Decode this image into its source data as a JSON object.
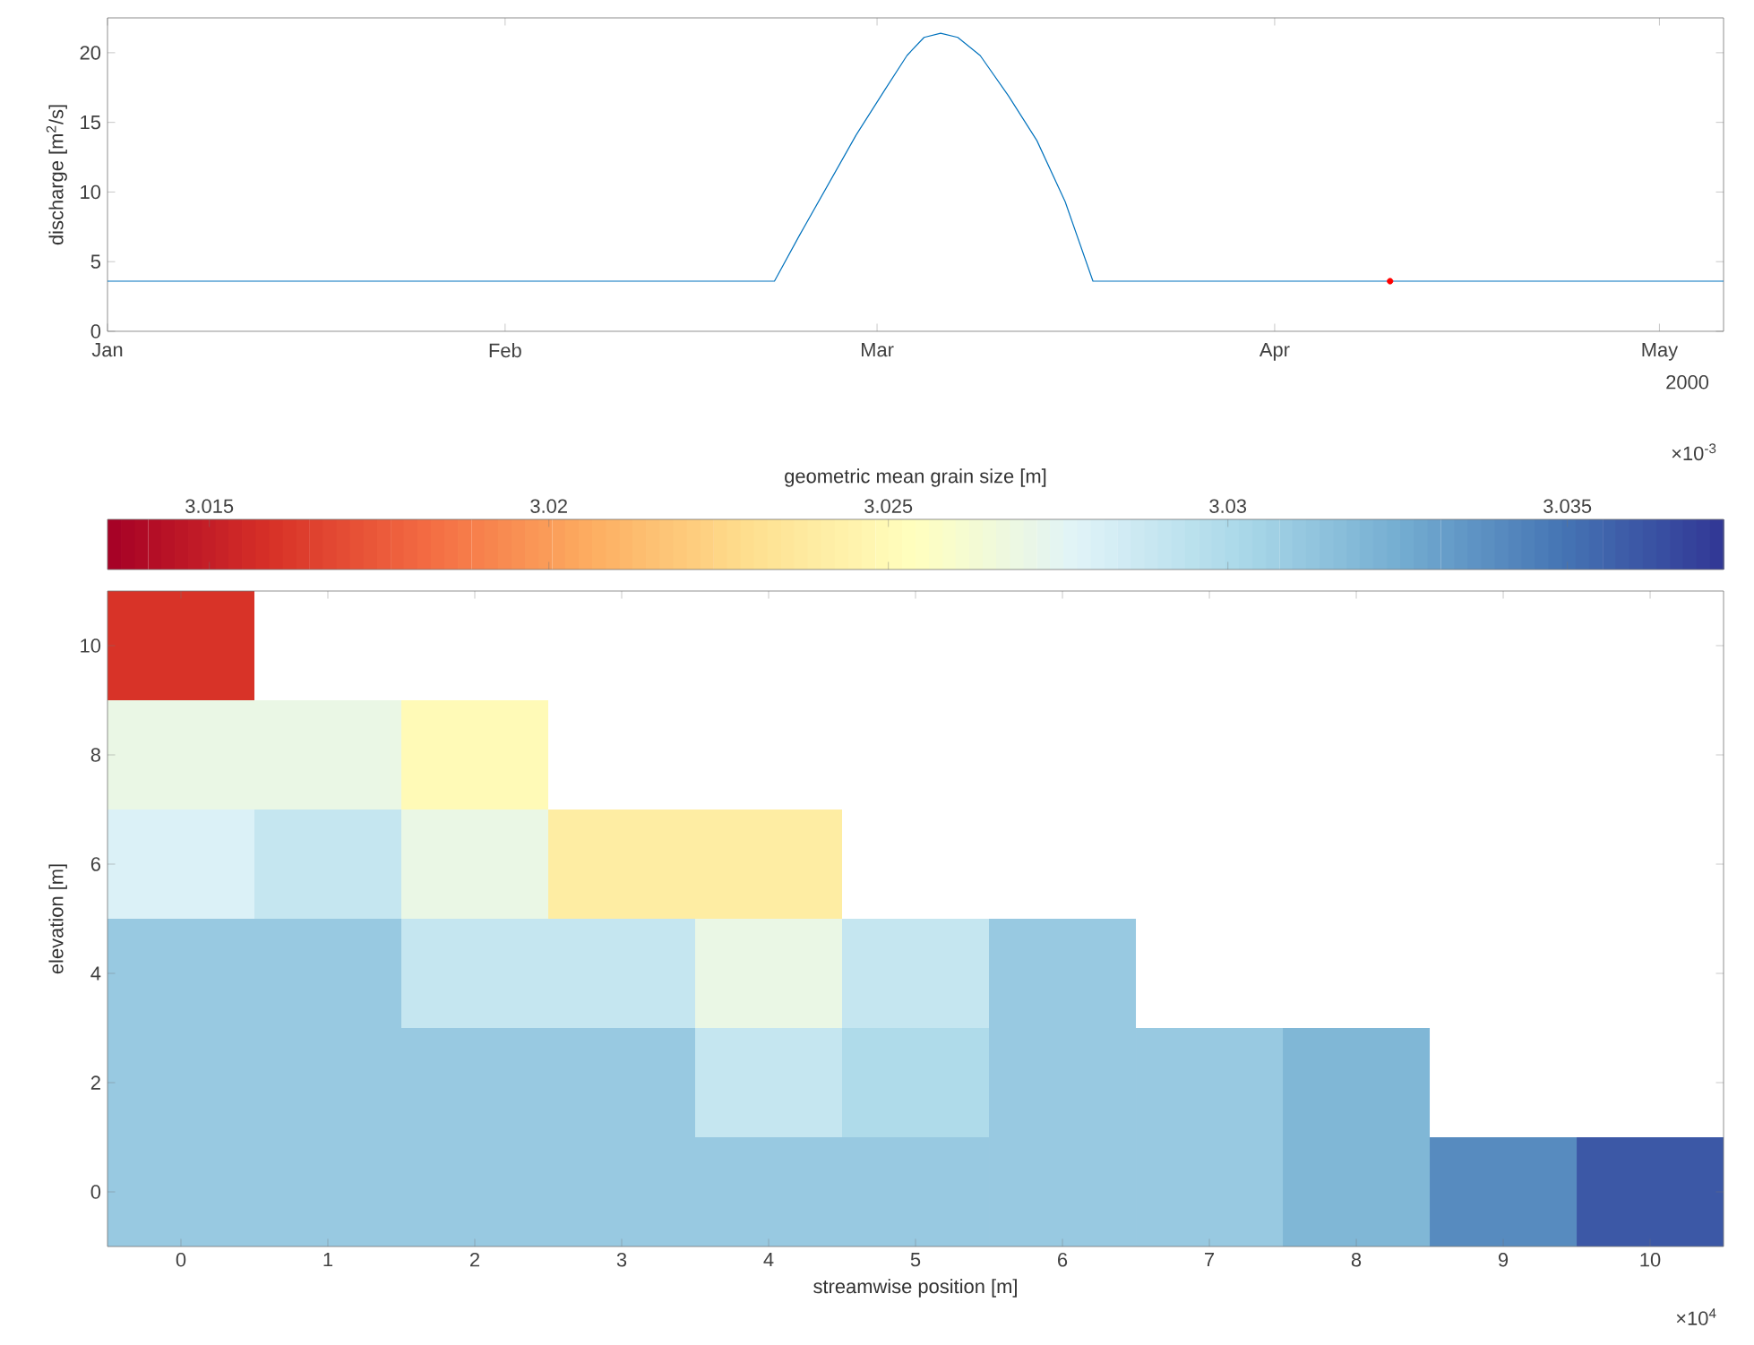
{
  "chart_data": [
    {
      "type": "line",
      "ylabel": "discharge [m$^{2}$/s]",
      "xlim": [
        "2000-01-01",
        "2000-05-06"
      ],
      "xticks": [
        {
          "value": "2000-01-01",
          "label": "Jan"
        },
        {
          "value": "2000-02-01",
          "label": "Feb"
        },
        {
          "value": "2000-03-01",
          "label": "Mar"
        },
        {
          "value": "2000-04-01",
          "label": "Apr"
        },
        {
          "value": "2000-05-01",
          "label": "May"
        }
      ],
      "ylim": [
        0,
        22.5
      ],
      "yticks": [
        0,
        5,
        10,
        15,
        20
      ],
      "series": [
        {
          "type": "line",
          "color": "#0072bd",
          "x": [
            "2000-01-01",
            "2000-02-22T00:00",
            "2000-02-23T23:00",
            "2000-02-26T04:00",
            "2000-02-28T09:00",
            "2000-03-01T14:00",
            "2000-03-03T08:00",
            "2000-03-04T16:00",
            "2000-03-05T23:00",
            "2000-03-07T07:00",
            "2000-03-09T01:00",
            "2000-03-11T06:00",
            "2000-03-13T11:00",
            "2000-03-15T16:00",
            "2000-03-17T20:00",
            "2000-05-06"
          ],
          "values": [
            3.6,
            3.6,
            6.9,
            10.5,
            14.1,
            17.3,
            19.8,
            21.1,
            21.4,
            21.1,
            19.8,
            16.9,
            13.7,
            9.3,
            3.6,
            3.6
          ]
        },
        {
          "type": "scatter",
          "color": "#ff0000",
          "marker": "circle",
          "x": [
            "2000-04-10"
          ],
          "values": [
            3.6
          ]
        }
      ],
      "annotations": [
        "2000"
      ]
    },
    {
      "type": "heatmap",
      "xlabel": "streamwise position [m]",
      "ylabel": "elevation [m]",
      "clabel": "geometric mean grain size [m]",
      "clim": [
        3.0135,
        3.0373
      ],
      "cticks": [
        3.015,
        3.02,
        3.025,
        3.03,
        3.035
      ],
      "categories": [
        "0",
        "1",
        "2",
        "3",
        "4",
        "5",
        "6",
        "7",
        "8",
        "9",
        "10"
      ],
      "y_categories": [
        "10",
        "8",
        "6",
        "4",
        "2",
        "0"
      ],
      "cells": [
        [
          3.016,
          null,
          null,
          null,
          null,
          null,
          null,
          null,
          null,
          null,
          null
        ],
        [
          3.027,
          3.027,
          3.025,
          null,
          null,
          null,
          null,
          null,
          null,
          null,
          null
        ],
        [
          3.028,
          3.029,
          3.027,
          3.024,
          3.024,
          null,
          null,
          null,
          null,
          null,
          null
        ],
        [
          3.031,
          3.031,
          3.029,
          3.029,
          3.027,
          3.029,
          3.031,
          null,
          null,
          null,
          null
        ],
        [
          3.031,
          3.031,
          3.031,
          3.031,
          3.029,
          3.03,
          3.031,
          3.031,
          3.032,
          null,
          null
        ],
        [
          3.031,
          3.031,
          3.031,
          3.031,
          3.031,
          3.031,
          3.031,
          3.031,
          3.032,
          3.034,
          3.036
        ]
      ],
      "annotations": [
        "×10$^{-3}$",
        "×10$^{4}$"
      ]
    }
  ]
}
